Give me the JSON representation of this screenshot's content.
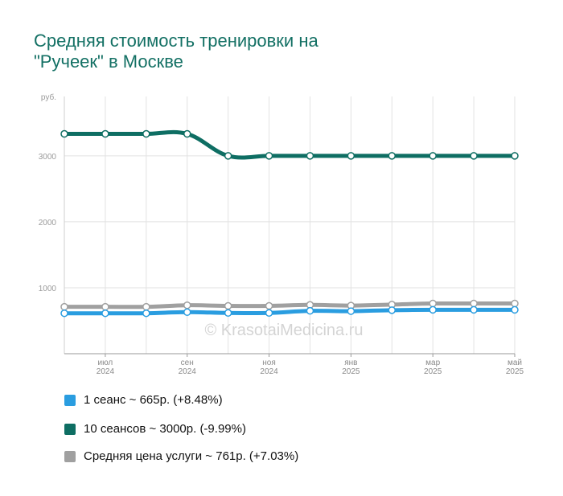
{
  "title_line1": "Средняя стоимость тренировки на",
  "title_line2": "\"Ручеек\" в Москве",
  "watermark": "© KrasotaiMedicina.ru",
  "chart_data": {
    "type": "line",
    "y_unit": "руб.",
    "ylim": [
      0,
      3900
    ],
    "yticks": [
      1000,
      2000,
      3000
    ],
    "x_tick_labels": [
      {
        "month": "июл",
        "year": "2024",
        "x": 1
      },
      {
        "month": "сен",
        "year": "2024",
        "x": 3
      },
      {
        "month": "ноя",
        "year": "2024",
        "x": 5
      },
      {
        "month": "янв",
        "year": "2025",
        "x": 7
      },
      {
        "month": "мар",
        "year": "2025",
        "x": 9
      },
      {
        "month": "май",
        "year": "2025",
        "x": 11
      }
    ],
    "x": [
      0,
      1,
      2,
      3,
      4,
      5,
      6,
      7,
      8,
      9,
      10,
      11
    ],
    "grid": true,
    "legend_position": "bottom",
    "series": [
      {
        "name": "1 сеанс ~ 665р. (+8.48%)",
        "color": "#2a9de0",
        "values": [
          613,
          613,
          613,
          630,
          618,
          618,
          650,
          645,
          660,
          665,
          665,
          665
        ]
      },
      {
        "name": "10 сеансов ~ 3000р. (-9.99%)",
        "color": "#0e6e63",
        "values": [
          3333,
          3333,
          3333,
          3333,
          3000,
          3000,
          3000,
          3000,
          3000,
          3000,
          3000,
          3000
        ]
      },
      {
        "name": "Средняя цена услуги ~ 761р. (+7.03%)",
        "color": "#a0a0a0",
        "values": [
          711,
          711,
          711,
          735,
          725,
          725,
          740,
          730,
          745,
          761,
          761,
          761
        ]
      }
    ]
  }
}
